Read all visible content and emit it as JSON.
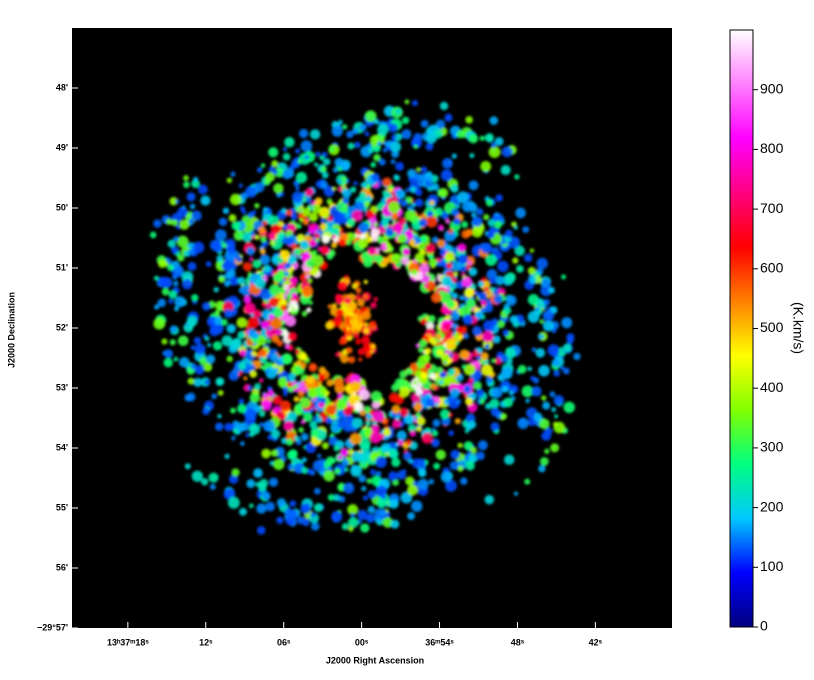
{
  "chart_data": {
    "type": "image",
    "xlabel": "J2000 Right Ascension",
    "ylabel": "J2000 Declination",
    "xlim": [
      49042.3,
      48996.1
    ],
    "xticks": [
      {
        "value": 49038,
        "label": "13ʰ37ᵐ18ˢ"
      },
      {
        "value": 49032,
        "label": "12ˢ"
      },
      {
        "value": 49026,
        "label": "06ˢ"
      },
      {
        "value": 49020,
        "label": "00ˢ"
      },
      {
        "value": 49014,
        "label": "36ᵐ54ˢ"
      },
      {
        "value": 49008,
        "label": "48ˢ"
      },
      {
        "value": 49002,
        "label": "42ˢ"
      }
    ],
    "ylim": [
      -1797,
      -1787
    ],
    "yticks": [
      {
        "value": -1788,
        "label": "48'"
      },
      {
        "value": -1789,
        "label": "49'"
      },
      {
        "value": -1790,
        "label": "50'"
      },
      {
        "value": -1791,
        "label": "51'"
      },
      {
        "value": -1792,
        "label": "52'"
      },
      {
        "value": -1793,
        "label": "53'"
      },
      {
        "value": -1794,
        "label": "54'"
      },
      {
        "value": -1795,
        "label": "55'"
      },
      {
        "value": -1796,
        "label": "56'"
      },
      {
        "value": -1797,
        "label": "−29°57'"
      }
    ],
    "colorbar_label": "(K.km/s)",
    "clim": [
      0,
      1000
    ],
    "cticks": [
      0,
      100,
      200,
      300,
      400,
      500,
      600,
      700,
      800,
      900
    ],
    "colormap": [
      "#000080",
      "#0000ff",
      "#00c8ff",
      "#00ff80",
      "#80ff00",
      "#ffff00",
      "#ff8000",
      "#ff0000",
      "#ff0080",
      "#ff00ff",
      "#ff80ff",
      "#ffffff"
    ]
  }
}
